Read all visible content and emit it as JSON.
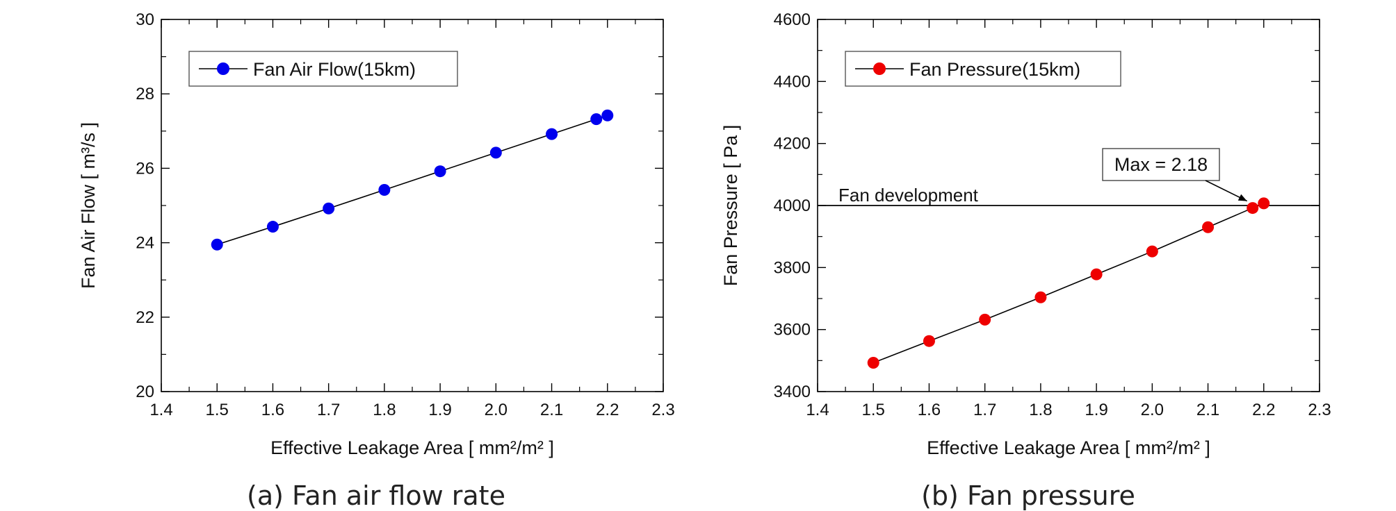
{
  "figure": {
    "captions": [
      "(a) Fan air flow rate",
      "(b) Fan pressure"
    ]
  },
  "chart_data": [
    {
      "type": "scatter",
      "xlabel": "Effective Leakage Area [ mm²/m² ]",
      "ylabel": "Fan Air Flow [ m³/s ]",
      "xlim": [
        1.4,
        2.3
      ],
      "ylim": [
        20,
        30
      ],
      "xticks": [
        "1.4",
        "1.5",
        "1.6",
        "1.7",
        "1.8",
        "1.9",
        "2.0",
        "2.1",
        "2.2",
        "2.3"
      ],
      "yticks": [
        "20",
        "22",
        "24",
        "26",
        "28",
        "30"
      ],
      "grid": false,
      "legend_position": "top-left",
      "series": [
        {
          "name": "Fan Air Flow(15km)",
          "color": "#0000ee",
          "marker": "circle",
          "line": "connected",
          "x": [
            1.5,
            1.6,
            1.7,
            1.8,
            1.9,
            2.0,
            2.1,
            2.18,
            2.2
          ],
          "y": [
            23.95,
            24.43,
            24.92,
            25.42,
            25.92,
            26.42,
            26.92,
            27.32,
            27.42
          ]
        }
      ]
    },
    {
      "type": "scatter",
      "xlabel": "Effective Leakage Area [ mm²/m² ]",
      "ylabel": "Fan Pressure [ Pa ]",
      "xlim": [
        1.4,
        2.3
      ],
      "ylim": [
        3400,
        4600
      ],
      "xticks": [
        "1.4",
        "1.5",
        "1.6",
        "1.7",
        "1.8",
        "1.9",
        "2.0",
        "2.1",
        "2.2",
        "2.3"
      ],
      "yticks": [
        "3400",
        "3600",
        "3800",
        "4000",
        "4200",
        "4400",
        "4600"
      ],
      "grid": false,
      "legend_position": "top-left",
      "series": [
        {
          "name": "Fan Pressure(15km)",
          "color": "#ee0000",
          "marker": "circle",
          "line": "connected",
          "x": [
            1.5,
            1.6,
            1.7,
            1.8,
            1.9,
            2.0,
            2.1,
            2.18,
            2.2
          ],
          "y": [
            3493,
            3563,
            3632,
            3704,
            3778,
            3852,
            3930,
            3992,
            4007
          ]
        }
      ],
      "reference_line": {
        "label": "Fan development",
        "y": 4000
      },
      "annotation": {
        "text": "Max = 2.18",
        "x": 2.18,
        "y": 3992
      }
    }
  ]
}
